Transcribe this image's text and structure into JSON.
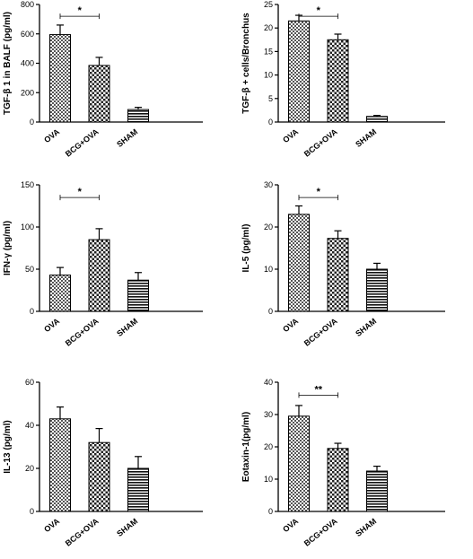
{
  "chart_data": [
    {
      "type": "bar",
      "ylabel": "TGF-β 1 in BALF (pg/ml)",
      "categories": [
        "OVA",
        "BCG+OVA",
        "SHAM"
      ],
      "values": [
        595,
        385,
        85
      ],
      "errors": [
        65,
        55,
        15
      ],
      "ylim": [
        0,
        800
      ],
      "yticks": [
        "0",
        "200",
        "400",
        "600",
        "800"
      ],
      "significance": [
        {
          "from": 0,
          "to": 1,
          "label": "*"
        }
      ]
    },
    {
      "type": "bar",
      "ylabel": "TGF-β + cells/Bronchus",
      "categories": [
        "OVA",
        "BCG+OVA",
        "SHAM"
      ],
      "values": [
        21.5,
        17.5,
        1.2
      ],
      "errors": [
        1.2,
        1.2,
        0.2
      ],
      "ylim": [
        0,
        25
      ],
      "yticks": [
        "0",
        "5",
        "10",
        "15",
        "20",
        "25"
      ],
      "significance": [
        {
          "from": 0,
          "to": 1,
          "label": "*"
        }
      ]
    },
    {
      "type": "bar",
      "ylabel": "IFN-γ (pg/ml)",
      "categories": [
        "OVA",
        "BCG+OVA",
        "SHAM"
      ],
      "values": [
        43,
        85,
        37
      ],
      "errors": [
        9,
        13,
        9
      ],
      "ylim": [
        0,
        150
      ],
      "yticks": [
        "0",
        "50",
        "100",
        "150"
      ],
      "significance": [
        {
          "from": 0,
          "to": 1,
          "label": "*"
        }
      ]
    },
    {
      "type": "bar",
      "ylabel": "IL-5 (pg/ml)",
      "categories": [
        "OVA",
        "BCG+OVA",
        "SHAM"
      ],
      "values": [
        23,
        17.3,
        10
      ],
      "errors": [
        2,
        1.8,
        1.4
      ],
      "ylim": [
        0,
        30
      ],
      "yticks": [
        "0",
        "10",
        "20",
        "30"
      ],
      "significance": [
        {
          "from": 0,
          "to": 1,
          "label": "*"
        }
      ]
    },
    {
      "type": "bar",
      "ylabel": "IL-13 (pg/ml)",
      "categories": [
        "OVA",
        "BCG+OVA",
        "SHAM"
      ],
      "values": [
        43,
        32,
        20
      ],
      "errors": [
        5.5,
        6.5,
        5.5
      ],
      "ylim": [
        0,
        60
      ],
      "yticks": [
        "0",
        "20",
        "40",
        "60"
      ],
      "significance": []
    },
    {
      "type": "bar",
      "ylabel": "Eotaxin-1(pg/ml)",
      "categories": [
        "OVA",
        "BCG+OVA",
        "SHAM"
      ],
      "values": [
        29.5,
        19.5,
        12.5
      ],
      "errors": [
        3.3,
        1.6,
        1.5
      ],
      "ylim": [
        0,
        40
      ],
      "yticks": [
        "0",
        "10",
        "20",
        "30",
        "40"
      ],
      "significance": [
        {
          "from": 0,
          "to": 1,
          "label": "**"
        }
      ]
    }
  ]
}
